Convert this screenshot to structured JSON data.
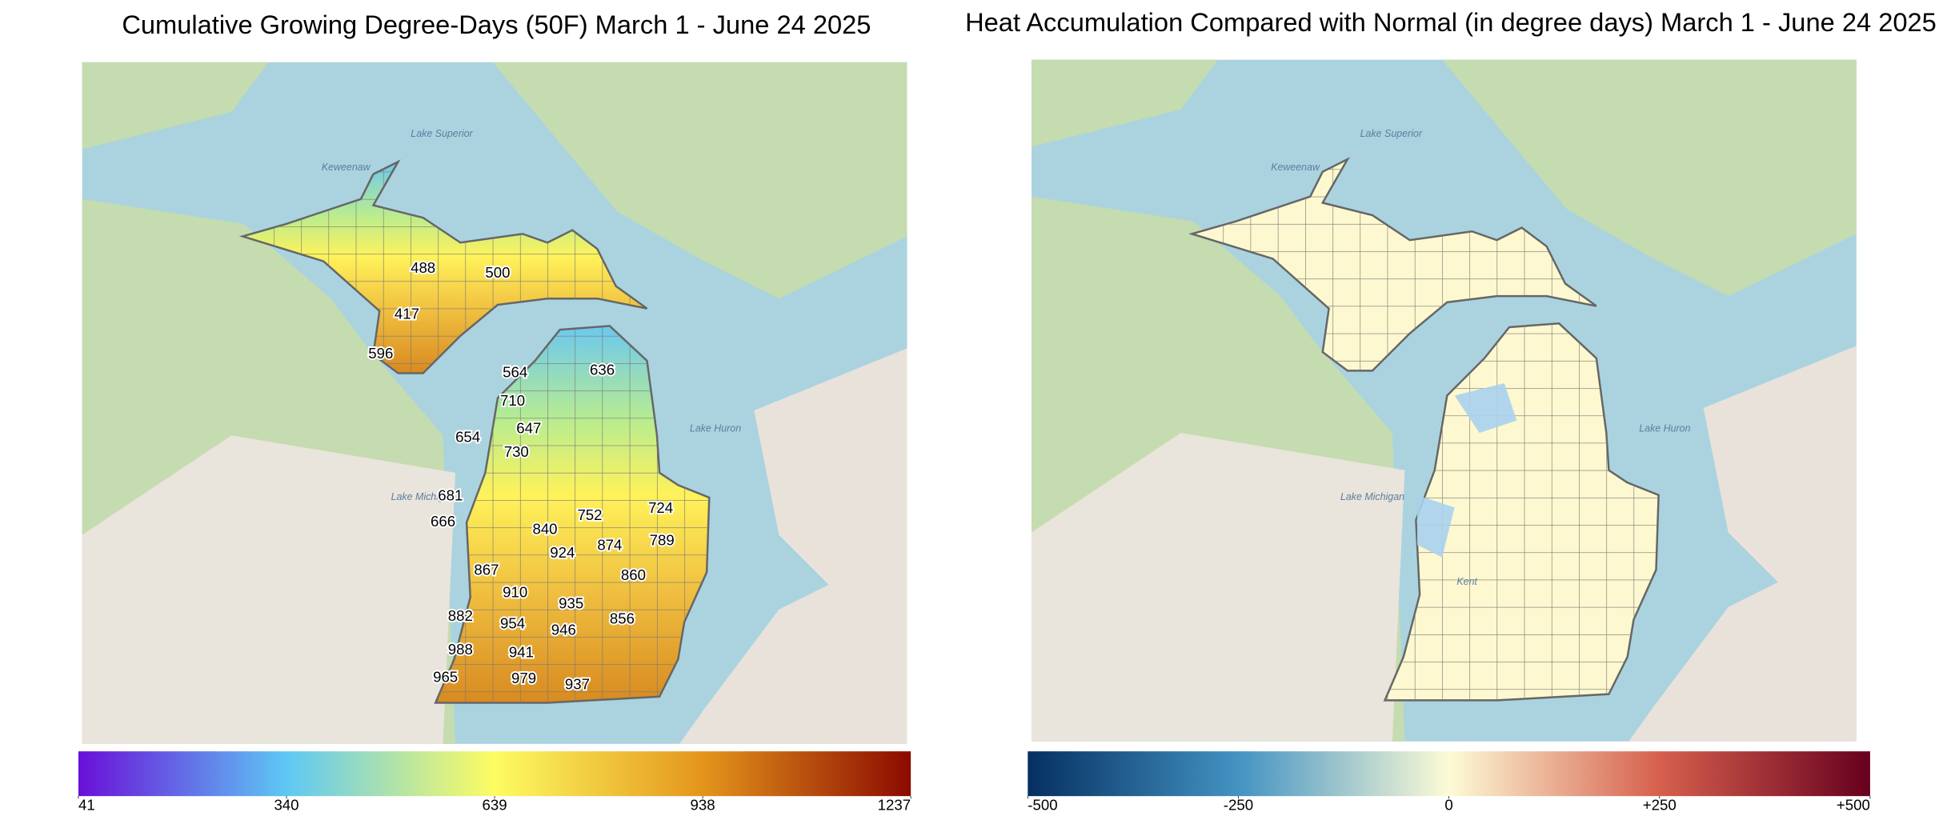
{
  "panels": [
    {
      "title": "Cumulative Growing Degree-Days (50F) March 1 - June 24 2025",
      "place_names": [
        "Keweenaw",
        "Lake Superior",
        "Lake Michigan",
        "Lake Huron"
      ],
      "labels": [
        488,
        500,
        417,
        596,
        564,
        636,
        710,
        647,
        654,
        730,
        681,
        666,
        752,
        724,
        840,
        924,
        874,
        789,
        867,
        910,
        860,
        935,
        882,
        954,
        946,
        856,
        988,
        941,
        965,
        979,
        937
      ],
      "colorbar": {
        "lim": [
          41,
          1237
        ],
        "ticks": [
          41,
          340,
          639,
          938,
          1237
        ],
        "colors": [
          "#6a0fd8",
          "#5ec8f5",
          "#fdfc62",
          "#e4951c",
          "#8b0a00"
        ]
      }
    },
    {
      "title": "Heat Accumulation Compared with Normal (in degree days) March 1 - June 24 2025",
      "place_names": [
        "Keweenaw",
        "Lake Superior",
        "Lake Michigan",
        "Lake Huron",
        "Kent"
      ],
      "labels": [],
      "colorbar": {
        "lim": [
          -500,
          500
        ],
        "ticks": [
          -500,
          -250,
          0,
          {
            "value": 250,
            "label": "+250"
          },
          {
            "value": 500,
            "label": "+500"
          }
        ],
        "colors": [
          "#053061",
          "#4393c3",
          "#fdfbd6",
          "#d6604d",
          "#67001f"
        ]
      }
    }
  ]
}
